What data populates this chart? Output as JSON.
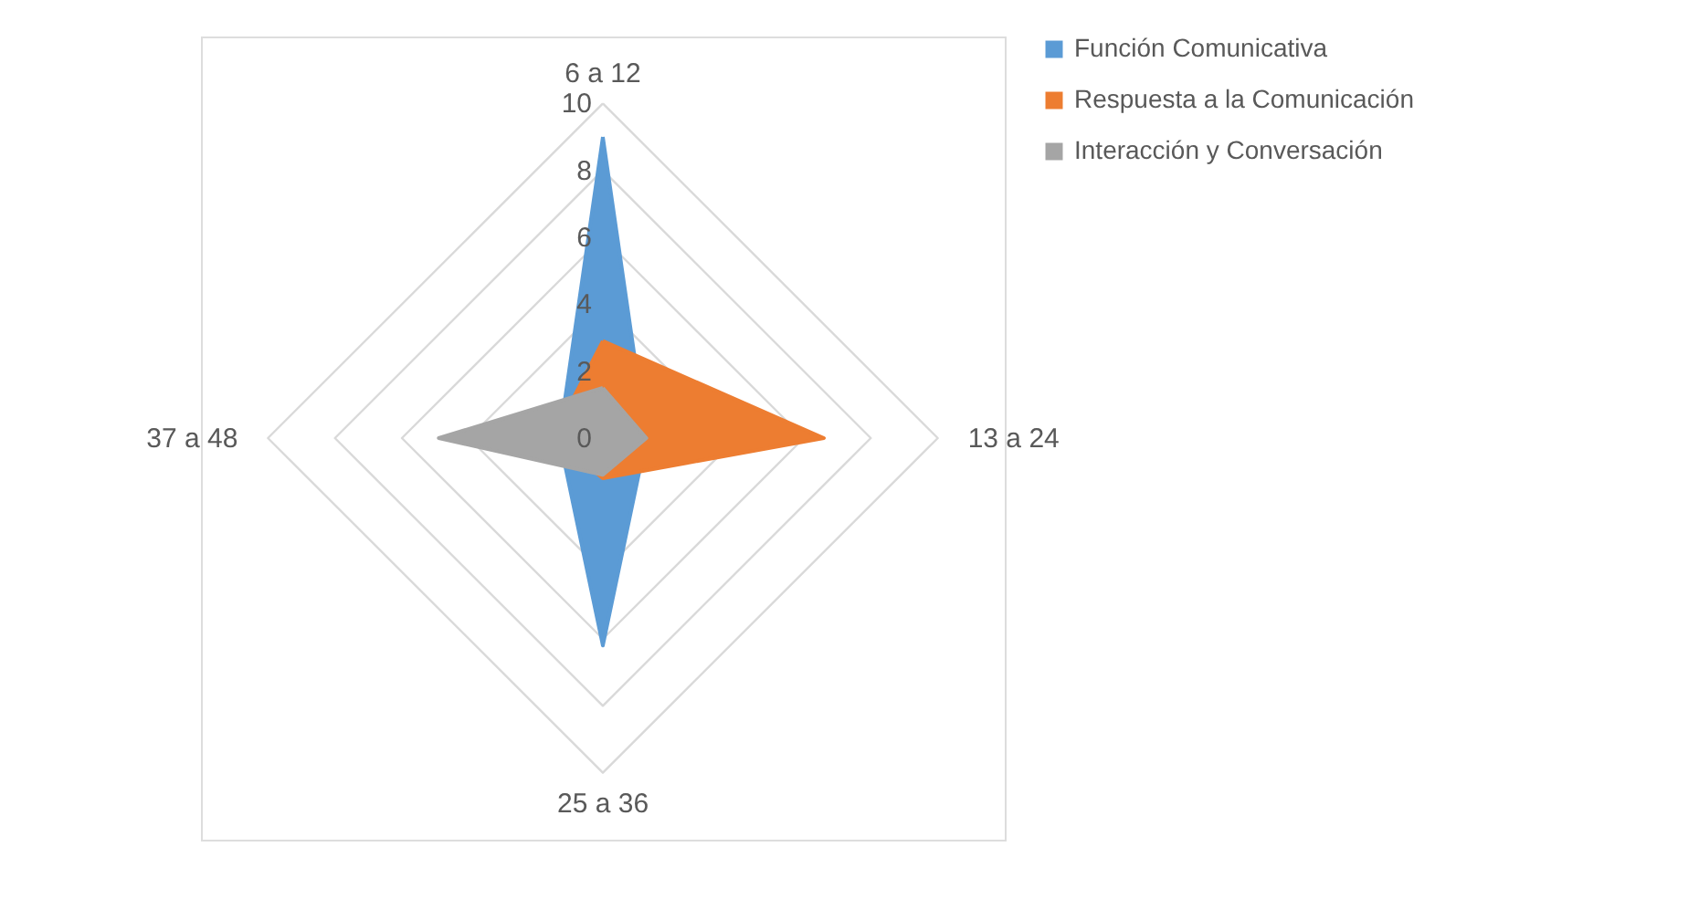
{
  "chart_data": {
    "type": "radar",
    "categories": [
      "6 a 12",
      "13 a 24",
      "25 a 36",
      "37 a 48"
    ],
    "series": [
      {
        "name": "Función Comunicativa",
        "color": "#5b9bd5",
        "values": [
          9,
          1.3,
          6.2,
          1.3
        ]
      },
      {
        "name": "Respuesta a la Comunicación",
        "color": "#ed7d31",
        "values": [
          2.9,
          6.6,
          1.2,
          1.5
        ]
      },
      {
        "name": "Interacción y Conversación",
        "color": "#a5a5a5",
        "values": [
          1.5,
          1.3,
          1.1,
          4.9
        ]
      }
    ],
    "ylim": [
      0,
      10
    ],
    "yticks": [
      0,
      2,
      4,
      6,
      8,
      10
    ],
    "grid": true,
    "legend": "right"
  }
}
